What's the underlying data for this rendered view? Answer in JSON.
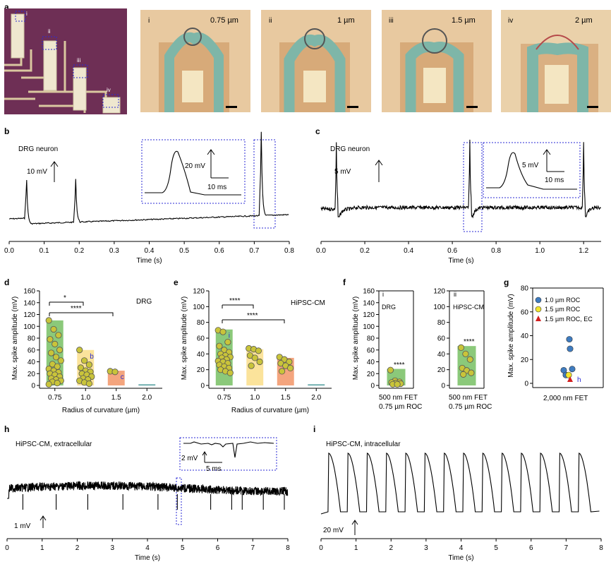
{
  "panels": {
    "a": {
      "letter": "a",
      "chip_labels": [
        "i",
        "ii",
        "iii",
        "iv"
      ],
      "images": [
        {
          "index": "i",
          "label": "0.75 µm"
        },
        {
          "index": "ii",
          "label": "1 µm"
        },
        {
          "index": "iii",
          "label": "1.5 µm"
        },
        {
          "index": "iv",
          "label": "2 µm"
        }
      ]
    },
    "b": {
      "letter": "b",
      "title": "DRG neuron",
      "scale_v": "10 mV",
      "inset_v": "20 mV",
      "inset_t": "10 ms"
    },
    "c": {
      "letter": "c",
      "title": "DRG neuron",
      "scale_v": "5 mV",
      "inset_v": "5 mV",
      "inset_t": "10 ms"
    },
    "d": {
      "letter": "d",
      "tag": "DRG",
      "sig1": "*",
      "sig2": "****",
      "bar_labels": [
        "",
        "b",
        "c",
        ""
      ]
    },
    "e": {
      "letter": "e",
      "tag": "HiPSC-CM",
      "sig1": "****",
      "sig2": "****",
      "bar_labels": [
        "i",
        "",
        "",
        ""
      ]
    },
    "f": {
      "letter": "f",
      "sub_i": "i",
      "sub_i_tag": "DRG",
      "sub_ii": "ii",
      "sub_ii_tag": "HiPSC-CM",
      "sig": "****",
      "xline1": "500 nm FET",
      "xline2": "0.75 µm ROC"
    },
    "g": {
      "letter": "g",
      "xlabel": "2,000 nm FET",
      "point_label": "h",
      "legend": [
        "1.0 µm ROC",
        "1.5 µm ROC",
        "1.5 µm ROC, EC"
      ]
    },
    "h": {
      "letter": "h",
      "title": "HiPSC-CM, extracellular",
      "scale_v": "1 mV",
      "inset_v": "2 mV",
      "inset_t": "5 ms"
    },
    "i": {
      "letter": "i",
      "title": "HiPSC-CM, intracellular",
      "scale_v": "20 mV"
    }
  },
  "colors": {
    "green": "#8bc97a",
    "yellow": "#fbe39b",
    "orange": "#f4a57e",
    "teal": "#4a9a9a",
    "dot_fill": "#c9c43a",
    "blue_pt": "#3f7cc0",
    "yellow_pt": "#f2e52c",
    "red_pt": "#d21f1f",
    "box": "#2a2ad6"
  },
  "chart_data": [
    {
      "id": "b",
      "type": "line",
      "xlabel": "Time (s)",
      "xlim": [
        0,
        0.8
      ],
      "xticks": [
        0,
        0.1,
        0.2,
        0.3,
        0.4,
        0.5,
        0.6,
        0.7,
        0.8
      ],
      "spike_times": [
        0.05,
        0.19,
        0.72
      ]
    },
    {
      "id": "c",
      "type": "line",
      "xlabel": "Time (s)",
      "xlim": [
        0,
        1.28
      ],
      "xticks": [
        0,
        0.2,
        0.4,
        0.6,
        0.8,
        1.0,
        1.2
      ],
      "spike_times": [
        0.07,
        0.68,
        1.2
      ]
    },
    {
      "id": "d",
      "type": "bar",
      "xlabel": "Radius of curvature (µm)",
      "ylabel": "Max. spike amplitude (mV)",
      "ylim": [
        0,
        160
      ],
      "yticks": [
        0,
        20,
        40,
        60,
        80,
        100,
        120,
        140,
        160
      ],
      "categories": [
        "0.75",
        "1.0",
        "1.5",
        "2.0"
      ],
      "values": [
        110,
        60,
        25,
        0
      ],
      "points": [
        [
          110,
          95,
          85,
          78,
          70,
          60,
          55,
          48,
          42,
          36,
          32,
          28,
          25,
          22,
          20,
          18,
          15,
          12,
          10,
          8,
          6,
          4,
          2
        ],
        [
          60,
          42,
          35,
          30,
          25,
          23,
          20,
          18,
          15,
          12,
          10,
          8,
          5,
          3
        ],
        [
          24,
          23
        ],
        []
      ]
    },
    {
      "id": "e",
      "type": "bar",
      "xlabel": "Radius of curvature (µm)",
      "ylabel": "Max. spike amplitude (mV)",
      "ylim": [
        0,
        120
      ],
      "yticks": [
        0,
        20,
        40,
        60,
        80,
        100,
        120
      ],
      "categories": [
        "0.75",
        "1.0",
        "1.5",
        "2.0"
      ],
      "values": [
        71,
        46,
        35,
        0
      ],
      "points": [
        [
          70,
          68,
          55,
          50,
          45,
          42,
          40,
          38,
          36,
          35,
          33,
          31,
          30,
          28,
          26,
          24,
          22,
          20,
          18,
          16
        ],
        [
          47,
          46,
          44,
          38,
          35,
          30,
          25
        ],
        [
          36,
          33,
          30,
          28,
          25,
          22,
          18
        ],
        []
      ]
    },
    {
      "id": "f_i",
      "type": "bar",
      "ylabel": "Max. spike amplitude (mV)",
      "ylim": [
        0,
        160
      ],
      "yticks": [
        0,
        20,
        40,
        60,
        80,
        100,
        120,
        140,
        160
      ],
      "values": [
        28
      ],
      "points": [
        26,
        8,
        6,
        5,
        4,
        3,
        2,
        2
      ]
    },
    {
      "id": "f_ii",
      "type": "bar",
      "ylim": [
        0,
        120
      ],
      "yticks": [
        0,
        20,
        40,
        60,
        80,
        100,
        120
      ],
      "values": [
        50
      ],
      "points": [
        48,
        40,
        33,
        22,
        19,
        16,
        14
      ]
    },
    {
      "id": "g",
      "type": "scatter",
      "ylabel": "Max. spike amplitude (mV)",
      "ylim": [
        0,
        80
      ],
      "yticks": [
        0,
        20,
        40,
        60,
        80
      ],
      "series": [
        {
          "name": "1.0 µm ROC",
          "values": [
            37,
            29,
            12,
            11,
            7
          ]
        },
        {
          "name": "1.5 µm ROC",
          "values": [
            7
          ]
        },
        {
          "name": "1.5 µm ROC, EC",
          "values": [
            3
          ]
        }
      ]
    },
    {
      "id": "h",
      "type": "line",
      "xlabel": "Time (s)",
      "xlim": [
        0,
        8
      ],
      "xticks": [
        0,
        1,
        2,
        3,
        4,
        5,
        6,
        7,
        8
      ],
      "spike_times": [
        0.45,
        1.4,
        2.3,
        3.3,
        4.3,
        4.85,
        5.8,
        6.4,
        6.7,
        7.3,
        7.9
      ]
    },
    {
      "id": "i",
      "type": "line",
      "xlabel": "Time (s)",
      "xlim": [
        0,
        8
      ],
      "xticks": [
        0,
        1,
        2,
        3,
        4,
        5,
        6,
        7,
        8
      ],
      "spike_times": [
        0.2,
        0.75,
        1.3,
        1.85,
        2.4,
        2.95,
        3.5,
        4.05,
        4.6,
        5.15,
        5.7,
        6.25,
        6.8,
        7.35
      ]
    }
  ]
}
